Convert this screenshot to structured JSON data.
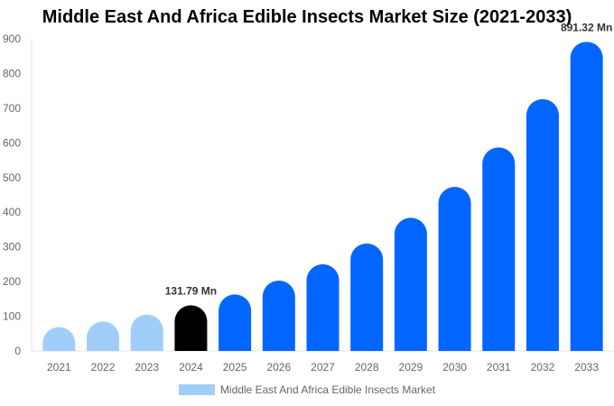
{
  "chart_data": {
    "type": "bar",
    "title": "Middle East And Africa Edible Insects Market Size (2021-2033)",
    "categories": [
      "2021",
      "2022",
      "2023",
      "2024",
      "2025",
      "2026",
      "2027",
      "2028",
      "2029",
      "2030",
      "2031",
      "2032",
      "2033"
    ],
    "series": [
      {
        "name": "Middle East And Africa Edible Insects Market",
        "values": [
          69,
          85,
          105,
          131.79,
          163,
          203,
          250,
          310,
          384,
          473,
          587,
          726,
          891.32
        ]
      }
    ],
    "data_labels": {
      "3": "131.79 Mn",
      "12": "891.32 Mn"
    },
    "ylim": [
      0,
      900
    ],
    "yticks": [
      0,
      100,
      200,
      300,
      400,
      500,
      600,
      700,
      800,
      900
    ],
    "grid": false,
    "legend": "bottom",
    "colors": {
      "historical": "#a1cdfb",
      "current": "#000000",
      "forecast": "#0066ff"
    }
  }
}
